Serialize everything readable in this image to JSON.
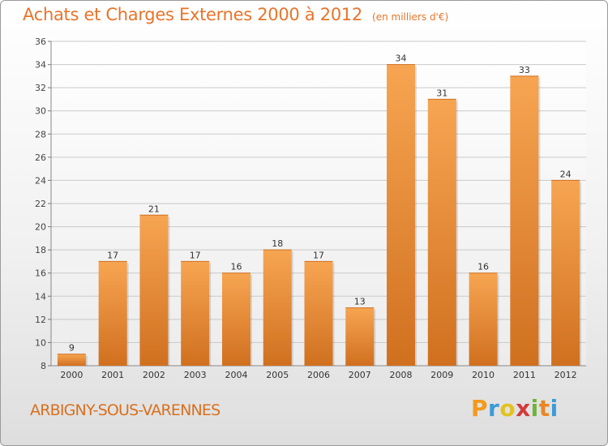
{
  "title": "Achats et Charges Externes 2000 à 2012",
  "unit": "(en milliers d'€)",
  "town": "ARBIGNY-SOUS-VARENNES",
  "logo": {
    "letters": [
      "P",
      "r",
      "o",
      "x",
      "i",
      "t",
      "i"
    ],
    "colors": [
      "#f39a1c",
      "#3b9ad8",
      "#e4c21c",
      "#d23b3b",
      "#6cb43a",
      "#e88724",
      "#3b9ad8"
    ]
  },
  "colors": {
    "accent": "#e8742a",
    "bar_light": "#f7a552",
    "bar_dark": "#d0701f",
    "grid": "#c9c9c9"
  },
  "chart_data": {
    "type": "bar",
    "categories": [
      "2000",
      "2001",
      "2002",
      "2003",
      "2004",
      "2005",
      "2006",
      "2007",
      "2008",
      "2009",
      "2010",
      "2011",
      "2012"
    ],
    "values": [
      9,
      17,
      21,
      17,
      16,
      18,
      17,
      13,
      34,
      31,
      16,
      33,
      24
    ],
    "ylim": [
      8,
      36
    ],
    "yticks": [
      8,
      10,
      12,
      14,
      16,
      18,
      20,
      22,
      24,
      26,
      28,
      30,
      32,
      34,
      36
    ],
    "grid": true,
    "xlabel": "",
    "ylabel": ""
  }
}
